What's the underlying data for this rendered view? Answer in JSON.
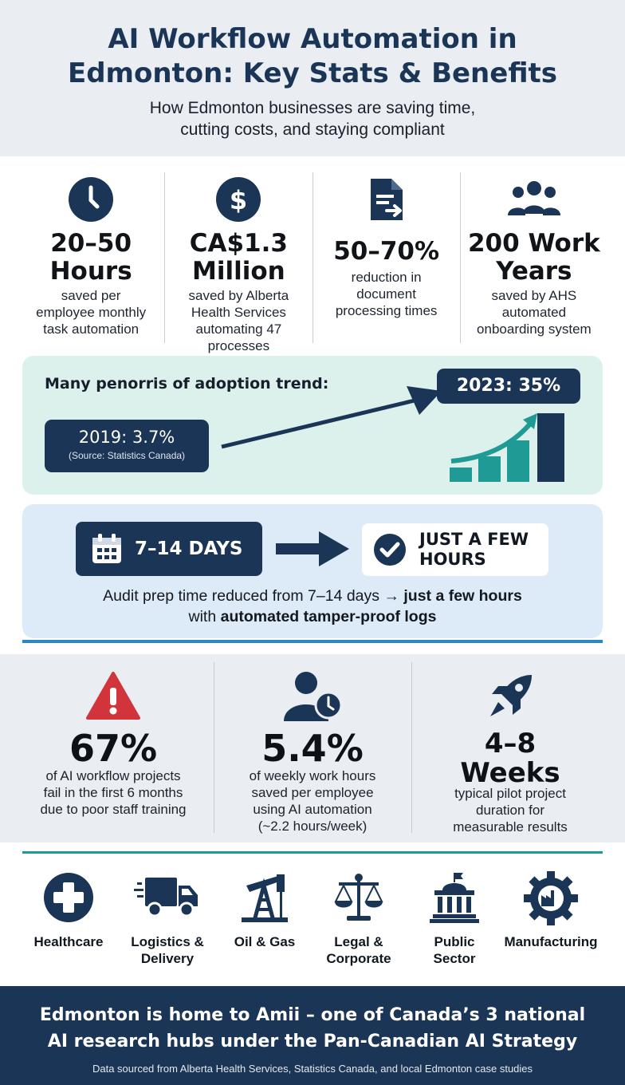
{
  "header": {
    "title_line1": "AI Workflow Automation in",
    "title_line2": "Edmonton: Key Stats & Benefits",
    "subtitle_line1": "How Edmonton businesses are saving time,",
    "subtitle_line2": "cutting costs, and staying compliant"
  },
  "top_stats": [
    {
      "icon": "clock-icon",
      "big_lines": [
        "20–50",
        "Hours"
      ],
      "small_lines": [
        "saved per",
        "employee monthly",
        "task automation"
      ]
    },
    {
      "icon": "dollar-icon",
      "big_lines": [
        "CA$1.3",
        "Million"
      ],
      "small_lines": [
        "saved by Alberta",
        "Health Services",
        "automating 47",
        "processes"
      ]
    },
    {
      "icon": "document-icon",
      "big_lines": [
        "50–70%"
      ],
      "small_lines": [
        "reduction in",
        "document",
        "processing times"
      ]
    },
    {
      "icon": "people-icon",
      "big_lines": [
        "200 Work",
        "Years"
      ],
      "small_lines": [
        "saved by AHS",
        "automated",
        "onboarding system"
      ]
    }
  ],
  "trend": {
    "label": "Many penorris of adoption trend:",
    "start_value": "2019: 3.7%",
    "start_source": "(Source: Statistics Canada)",
    "end_value": "2023: 35%"
  },
  "audit": {
    "before": "7–14 DAYS",
    "after_line1": "JUST A FEW",
    "after_line2": "HOURS",
    "desc_prefix": "Audit prep time reduced from 7–14 days → ",
    "desc_bold1": "just a few hours",
    "desc_mid": "with ",
    "desc_bold2": "automated tamper-proof logs"
  },
  "bottom_stats": [
    {
      "icon": "warning-icon",
      "big_lines": [
        "67%"
      ],
      "small_lines": [
        "of AI workflow projects",
        "fail in the first 6 months",
        "due to poor staff training"
      ]
    },
    {
      "icon": "user-clock-icon",
      "big_lines": [
        "5.4%"
      ],
      "small_lines": [
        "of weekly work hours",
        "saved per employee",
        "using AI automation",
        "(~2.2 hours/week)"
      ]
    },
    {
      "icon": "rocket-icon",
      "big_lines": [
        "4–8",
        "Weeks"
      ],
      "small_lines": [
        "typical pilot project",
        "duration for",
        "measurable results"
      ]
    }
  ],
  "sectors": [
    {
      "icon": "medical-cross-icon",
      "label_lines": [
        "Healthcare"
      ]
    },
    {
      "icon": "truck-icon",
      "label_lines": [
        "Logistics &",
        "Delivery"
      ]
    },
    {
      "icon": "oil-rig-icon",
      "label_lines": [
        "Oil & Gas"
      ]
    },
    {
      "icon": "scales-icon",
      "label_lines": [
        "Legal &",
        "Corporate"
      ]
    },
    {
      "icon": "government-building-icon",
      "label_lines": [
        "Public",
        "Sector"
      ]
    },
    {
      "icon": "factory-gear-icon",
      "label_lines": [
        "Manufacturing"
      ]
    }
  ],
  "footer": {
    "line1": "Edmonton is home to Amii – one of Canada’s 3 national",
    "line2": "AI research hubs under the Pan-Canadian AI Strategy",
    "source": "Data sourced from Alberta Health Services, Statistics Canada, and local Edmonton case studies"
  },
  "colors": {
    "navy": "#1b3556",
    "teal": "#1f9a94",
    "red": "#d1343b",
    "mint": "#dcf0ec",
    "sky": "#ddebf8"
  }
}
